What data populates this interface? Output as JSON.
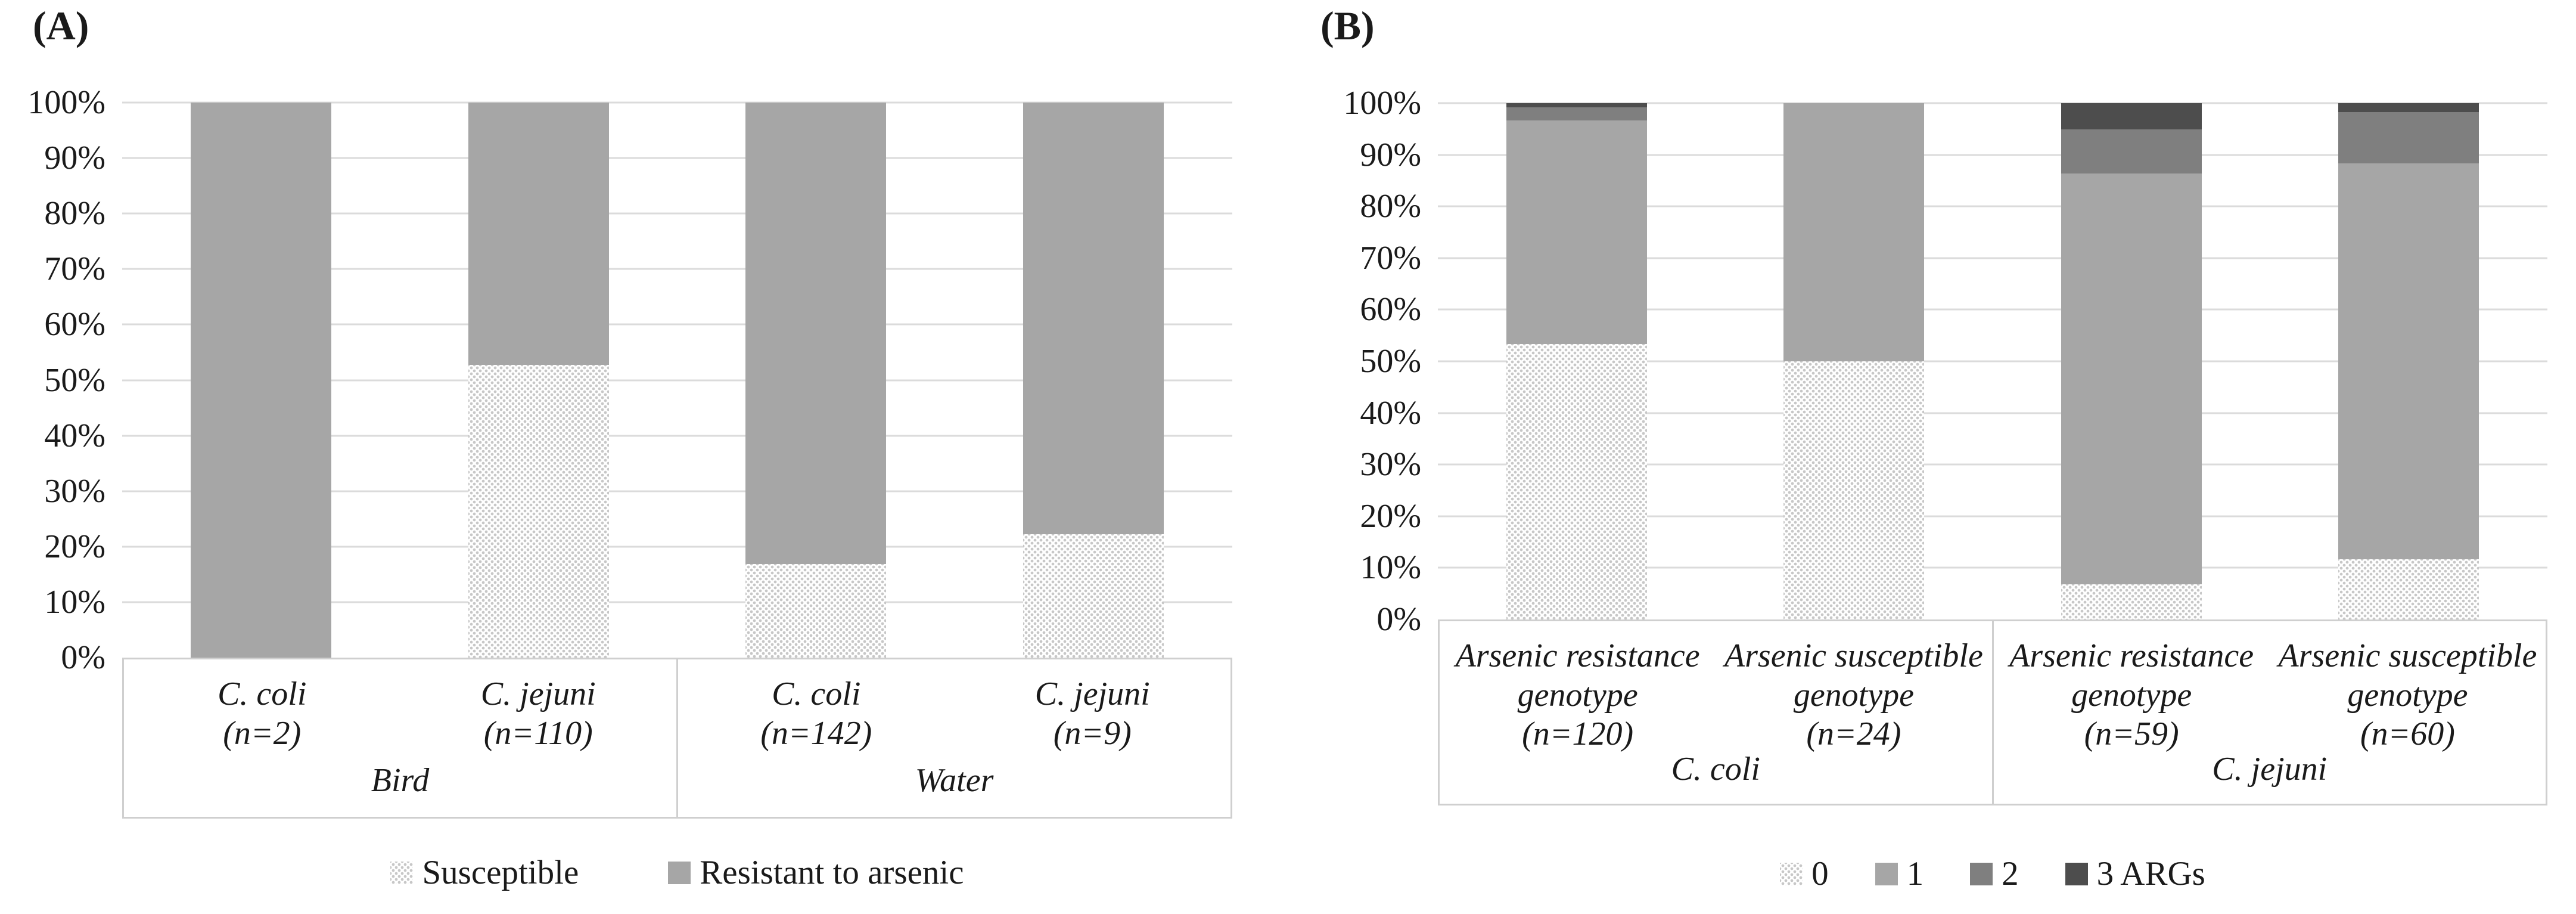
{
  "figure": {
    "background": "#ffffff",
    "text_color": "#1a1a1a",
    "gridline_color": "#dbdbdb",
    "axis_box_color": "#cfcfcf"
  },
  "chart_data": [
    {
      "panel_label": "(A)",
      "type": "bar",
      "subtype": "stacked-100-percent-column",
      "title": "",
      "xlabel": "",
      "ylabel": "",
      "ylim": [
        0,
        100
      ],
      "grid": true,
      "legend_position": "bottom",
      "y_ticks": [
        "0%",
        "10%",
        "20%",
        "30%",
        "40%",
        "50%",
        "60%",
        "70%",
        "80%",
        "90%",
        "100%"
      ],
      "groups": [
        {
          "label": "Bird",
          "span": 2
        },
        {
          "label": "Water",
          "span": 2
        }
      ],
      "categories": [
        {
          "lines": [
            "C. coli",
            "(n=2)"
          ]
        },
        {
          "lines": [
            "C. jejuni",
            "(n=110)"
          ]
        },
        {
          "lines": [
            "C. coli",
            "(n=142)"
          ]
        },
        {
          "lines": [
            "C. jejuni",
            "(n=9)"
          ]
        }
      ],
      "series": [
        {
          "name": "Susceptible",
          "fill": "pattern-dots",
          "color": "#c7c7c7",
          "values": [
            0,
            52.7,
            16.9,
            22.2
          ]
        },
        {
          "name": "Resistant to arsenic",
          "fill": "solid",
          "color": "#a6a6a6",
          "values": [
            100,
            47.3,
            83.1,
            77.8
          ]
        }
      ]
    },
    {
      "panel_label": "(B)",
      "type": "bar",
      "subtype": "stacked-100-percent-column",
      "title": "",
      "xlabel": "",
      "ylabel": "",
      "ylim": [
        0,
        100
      ],
      "grid": true,
      "legend_position": "bottom",
      "y_ticks": [
        "0%",
        "10%",
        "20%",
        "30%",
        "40%",
        "50%",
        "60%",
        "70%",
        "80%",
        "90%",
        "100%"
      ],
      "groups": [
        {
          "label": "C. coli",
          "span": 2
        },
        {
          "label": "C. jejuni",
          "span": 2
        }
      ],
      "categories": [
        {
          "lines": [
            "Arsenic resistance",
            "genotype",
            "(n=120)"
          ]
        },
        {
          "lines": [
            "Arsenic susceptible",
            "genotype",
            "(n=24)"
          ]
        },
        {
          "lines": [
            "Arsenic resistance",
            "genotype",
            "(n=59)"
          ]
        },
        {
          "lines": [
            "Arsenic susceptible",
            "genotype",
            "(n=60)"
          ]
        }
      ],
      "series": [
        {
          "name": "0",
          "fill": "pattern-dots",
          "color": "#c7c7c7",
          "values": [
            53.3,
            50,
            6.8,
            11.7
          ]
        },
        {
          "name": "1",
          "fill": "solid",
          "color": "#a6a6a6",
          "values": [
            43.4,
            50,
            79.6,
            76.6
          ]
        },
        {
          "name": "2",
          "fill": "solid",
          "color": "#7f7f7f",
          "values": [
            2.5,
            0,
            8.5,
            10
          ]
        },
        {
          "name": "3 ARGs",
          "fill": "solid",
          "color": "#4d4d4d",
          "values": [
            0.8,
            0,
            5.1,
            1.7
          ]
        }
      ]
    }
  ]
}
